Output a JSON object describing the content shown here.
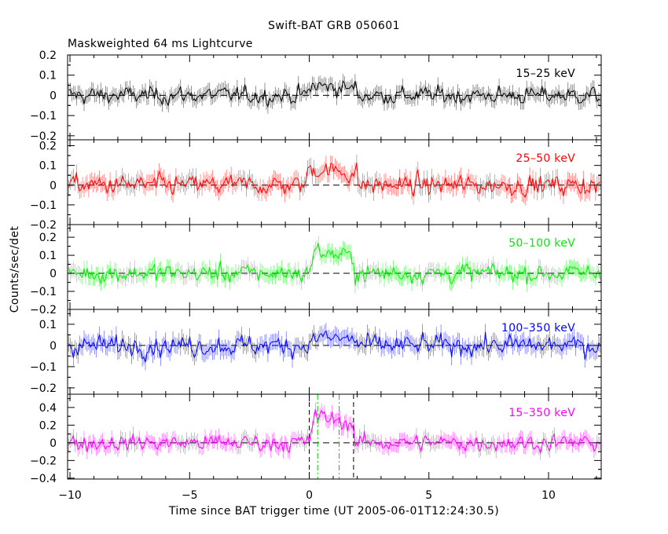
{
  "chart_data": {
    "type": "line",
    "title": "Swift-BAT GRB 050601",
    "subtitle": "Maskweighted 64 ms Lightcurve",
    "xlabel": "Time since BAT trigger time (UT 2005-06-01T12:24:30.5)",
    "ylabel": "Counts/sec/det",
    "xlim": [
      -10.1,
      12.2
    ],
    "xticks": [
      -10,
      -5,
      0,
      5,
      10
    ],
    "bin_seconds": 0.064,
    "markers": {
      "black_dashed": [
        0.0,
        1.85
      ],
      "green_dashdot": [
        0.35,
        1.25
      ]
    },
    "panels": [
      {
        "name": "15-25 keV",
        "label": "15–25 keV",
        "color": "#000000",
        "ylim": [
          -0.22,
          0.2
        ],
        "yticks": [
          -0.2,
          -0.1,
          0,
          0.1,
          0.2
        ],
        "ytick_labels": [
          "−0.2",
          "−0.1",
          "0",
          "0.1",
          "0.2"
        ],
        "noise_sigma": 0.038,
        "pulse": [
          {
            "t0": -0.1,
            "t1": 2.0,
            "amp": 0.05
          }
        ]
      },
      {
        "name": "25-50 keV",
        "label": "25–50 keV",
        "color": "#ff0000",
        "ylim": [
          -0.2,
          0.23
        ],
        "yticks": [
          -0.2,
          -0.1,
          0,
          0.1,
          0.2
        ],
        "ytick_labels": [
          "−0.2",
          "−0.1",
          "0",
          "0.1",
          "0.2"
        ],
        "noise_sigma": 0.045,
        "pulse": [
          {
            "t0": -0.2,
            "t1": 2.0,
            "amp": 0.09
          }
        ]
      },
      {
        "name": "50-100 keV",
        "label": "50–100 keV",
        "color": "#00ee00",
        "ylim": [
          -0.2,
          0.27
        ],
        "yticks": [
          -0.2,
          -0.1,
          0,
          0.1,
          0.2
        ],
        "ytick_labels": [
          "−0.2",
          "−0.1",
          "0",
          "0.1",
          "0.2"
        ],
        "noise_sigma": 0.045,
        "pulse": [
          {
            "t0": 0.0,
            "t1": 1.9,
            "amp": 0.13
          }
        ]
      },
      {
        "name": "100-350 keV",
        "label": "100–350 keV",
        "color": "#0000ff",
        "ylim": [
          -0.23,
          0.17
        ],
        "yticks": [
          -0.2,
          -0.1,
          0,
          0.1
        ],
        "ytick_labels": [
          "−0.2",
          "−0.1",
          "0",
          "0.1"
        ],
        "noise_sigma": 0.042,
        "pulse": [
          {
            "t0": 0.0,
            "t1": 2.0,
            "amp": 0.04
          }
        ]
      },
      {
        "name": "15-350 keV",
        "label": "15–350 keV",
        "color": "#ff00ff",
        "ylim": [
          -0.41,
          0.55
        ],
        "yticks": [
          -0.4,
          -0.2,
          0,
          0.2,
          0.4
        ],
        "ytick_labels": [
          "−0.4",
          "−0.2",
          "0",
          "0.2",
          "0.4"
        ],
        "noise_sigma": 0.085,
        "pulse": [
          {
            "t0": 0.0,
            "t1": 1.9,
            "amp": 0.32
          }
        ]
      }
    ]
  }
}
